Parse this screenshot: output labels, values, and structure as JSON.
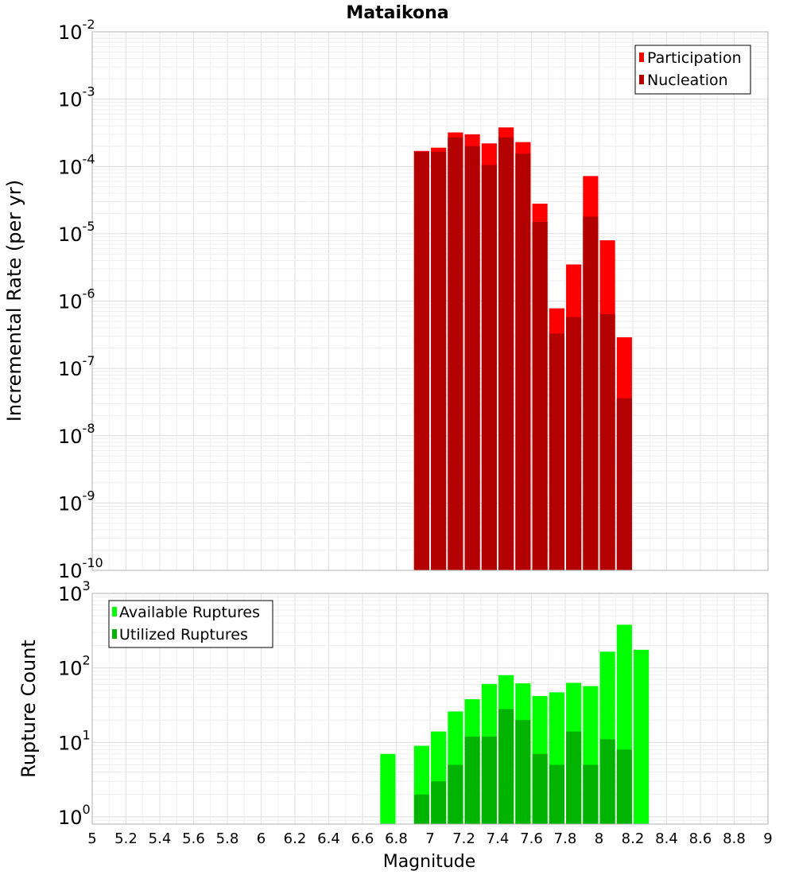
{
  "title": "Mataikona",
  "top_plot": {
    "ylabel": "Incremental Rate (per yr)",
    "yticks": [
      {
        "base": "10",
        "exp": "-10",
        "value": 1e-10
      },
      {
        "base": "10",
        "exp": "-9",
        "value": 1e-09
      },
      {
        "base": "10",
        "exp": "-8",
        "value": 1e-08
      },
      {
        "base": "10",
        "exp": "-7",
        "value": 1e-07
      },
      {
        "base": "10",
        "exp": "-6",
        "value": 1e-06
      },
      {
        "base": "10",
        "exp": "-5",
        "value": 1e-05
      },
      {
        "base": "10",
        "exp": "-4",
        "value": 0.0001
      },
      {
        "base": "10",
        "exp": "-3",
        "value": 0.001
      },
      {
        "base": "10",
        "exp": "-2",
        "value": 0.01
      }
    ],
    "legend": [
      "Participation",
      "Nucleation"
    ]
  },
  "bottom_plot": {
    "ylabel": "Rupture Count",
    "yticks": [
      {
        "base": "10",
        "exp": "0",
        "value": 1
      },
      {
        "base": "10",
        "exp": "1",
        "value": 10
      },
      {
        "base": "10",
        "exp": "2",
        "value": 100
      },
      {
        "base": "10",
        "exp": "3",
        "value": 1000
      }
    ],
    "legend": [
      "Available Ruptures",
      "Utilized Ruptures"
    ]
  },
  "xlabel": "Magnitude",
  "xticks": [
    "5",
    "5.2",
    "5.4",
    "5.6",
    "5.8",
    "6",
    "6.2",
    "6.4",
    "6.6",
    "6.8",
    "7",
    "7.2",
    "7.4",
    "7.6",
    "7.8",
    "8",
    "8.2",
    "8.4",
    "8.6",
    "8.8",
    "9"
  ],
  "chart_data": [
    {
      "type": "bar",
      "x": [
        6.95,
        7.05,
        7.15,
        7.25,
        7.35,
        7.45,
        7.55,
        7.65,
        7.75,
        7.85,
        7.95,
        8.05,
        8.15
      ],
      "series": [
        {
          "name": "Participation",
          "color": "#ff0000",
          "values": [
            0.00017,
            0.00019,
            0.00032,
            0.0003,
            0.00022,
            0.00038,
            0.00023,
            2.8e-05,
            7.8e-07,
            3.5e-06,
            7.2e-05,
            8e-06,
            2.9e-07
          ]
        },
        {
          "name": "Nucleation",
          "color": "#b30000",
          "values": [
            0.000165,
            0.000165,
            0.00027,
            0.0002,
            0.000105,
            0.00027,
            0.000155,
            1.5e-05,
            3.3e-07,
            5.8e-07,
            1.8e-05,
            6.4e-07,
            3.6e-08
          ]
        }
      ],
      "xlim": [
        5,
        9
      ],
      "ylim": [
        1e-10,
        0.01
      ],
      "yscale": "log",
      "ylabel": "Incremental Rate (per yr)",
      "legend_position": "top-right",
      "grid": true
    },
    {
      "type": "bar",
      "x": [
        6.75,
        6.95,
        7.05,
        7.15,
        7.25,
        7.35,
        7.45,
        7.55,
        7.65,
        7.75,
        7.85,
        7.95,
        8.05,
        8.15,
        8.25
      ],
      "series": [
        {
          "name": "Available Ruptures",
          "color": "#00ff00",
          "values": [
            7,
            9,
            14,
            26,
            38,
            61,
            80,
            62,
            42,
            47,
            63,
            57,
            165,
            380,
            175
          ]
        },
        {
          "name": "Utilized Ruptures",
          "color": "#00b300",
          "values": [
            0,
            2,
            3,
            5,
            12,
            12,
            28,
            20,
            7,
            5,
            14,
            5,
            11,
            8,
            0
          ]
        }
      ],
      "xlim": [
        5,
        9
      ],
      "ylim": [
        0.8,
        1000
      ],
      "yscale": "log",
      "xlabel": "Magnitude",
      "ylabel": "Rupture Count",
      "legend_position": "top-left",
      "grid": true
    }
  ]
}
